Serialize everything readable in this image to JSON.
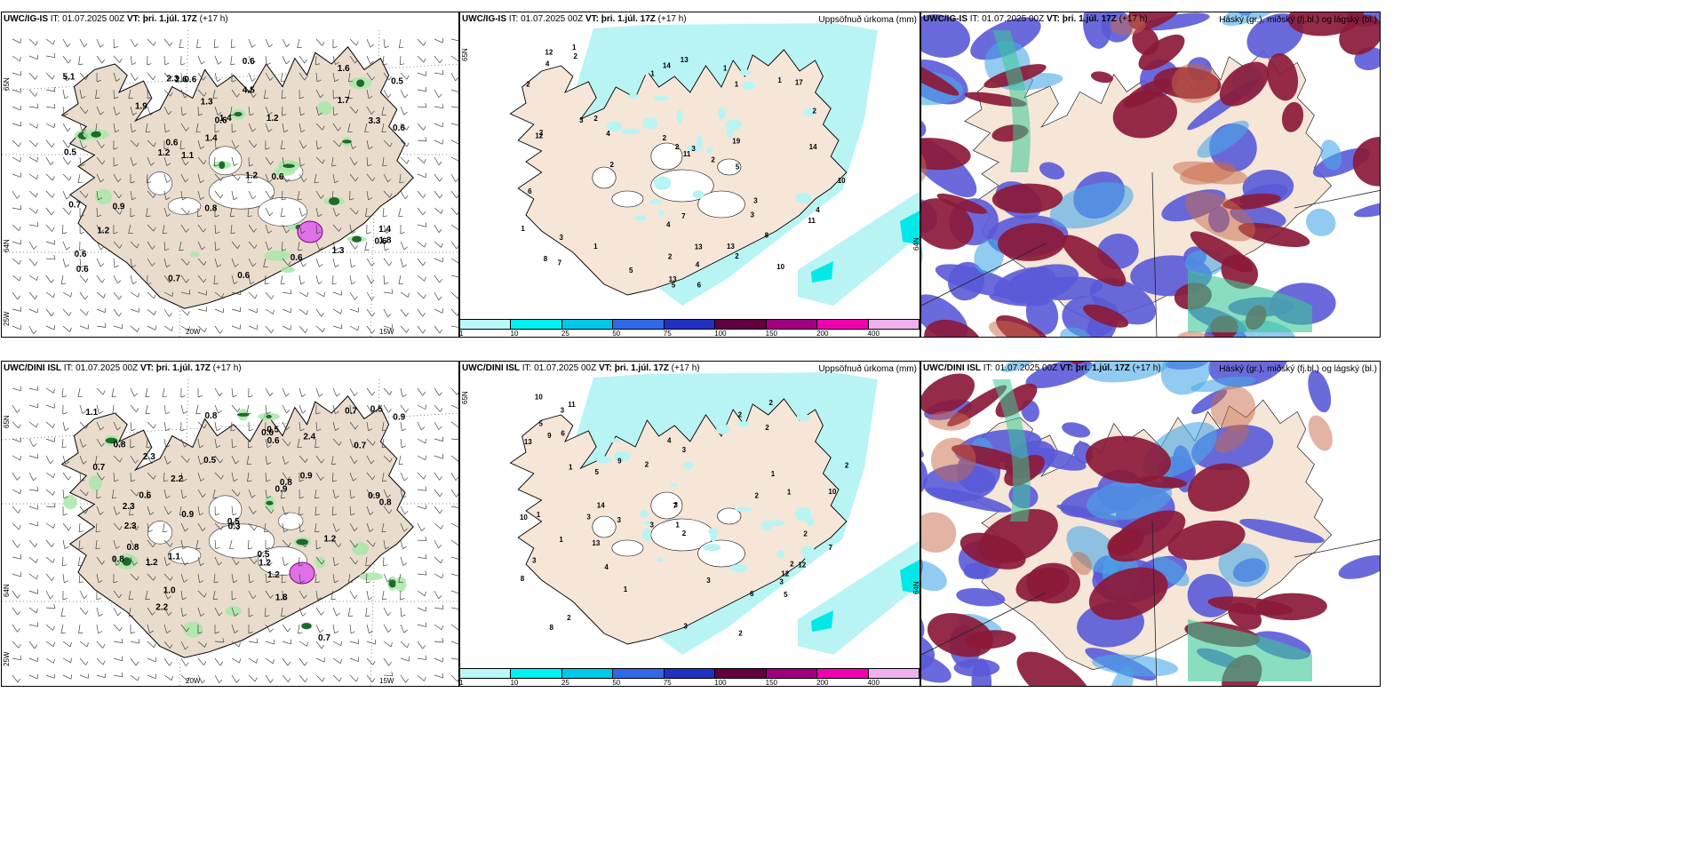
{
  "colors": {
    "land": "#f5e6d8",
    "land_dark": "#e9dccc",
    "precip_light": "#b8f4f4",
    "precip_mid": "#00e8e8",
    "cloud_high": "#8b1a3a",
    "cloud_mid": "#5a5ad8",
    "cloud_low": "#3cc896",
    "green_shade": "#a8e8a8",
    "magenta": "#e070e8"
  },
  "rows": [
    {
      "model": "UWC/IG-IS",
      "it_label": "IT:",
      "it_value": "01.07.2025 00Z",
      "vt_label": "VT:",
      "vt_value": "þri. 1.júl. 17Z",
      "lead": "(+17 h)",
      "precip_title": "Uppsöfnuð úrkoma (mm)",
      "cloud_title": "Háský (gr.), miðský (fj.bl.) og lágský (bl.)",
      "lon_labels": [
        "20W",
        "15W"
      ],
      "lat_labels": [
        "65N",
        "64N",
        "25W"
      ],
      "precip_lat_label": "65N",
      "precip_right_label": "64N",
      "wind_values": [
        "0.5",
        "0.6",
        "0.8",
        "1.2",
        "0.6",
        "1.1",
        "0.5",
        "0.6",
        "1.4",
        "0.6",
        "0.9",
        "0.6",
        "0.6",
        "0.6",
        "1.4",
        "0.6",
        "1.3",
        "0.6",
        "1.6",
        "1.2",
        "4.5",
        "0.6",
        "2.3",
        "1.3",
        "0.7",
        "1.9",
        "1.8",
        "1.2",
        "2.6",
        "1.4",
        "0.6",
        "5.1",
        "0.7",
        "3.3",
        "1.2",
        "1.7"
      ],
      "precip_values": [
        "2",
        "2",
        "3",
        "2",
        "2",
        "3",
        "2",
        "1",
        "2",
        "12",
        "13",
        "17",
        "13",
        "2",
        "2",
        "2",
        "1",
        "1",
        "1",
        "1",
        "2",
        "1",
        "4",
        "5",
        "3",
        "4",
        "8",
        "4",
        "3",
        "6",
        "2",
        "4",
        "3",
        "7",
        "5",
        "4",
        "13",
        "14",
        "7",
        "10",
        "6",
        "13",
        "14",
        "10",
        "19",
        "8",
        "11",
        "11",
        "12",
        "5",
        "1"
      ]
    },
    {
      "model": "UWC/DINI ISL",
      "it_label": "IT:",
      "it_value": "01.07.2025 00Z",
      "vt_label": "VT:",
      "vt_value": "þri. 1.júl. 17Z",
      "lead": "(+17 h)",
      "precip_title": "Uppsöfnuð úrkoma (mm)",
      "cloud_title": "Háský (gr.), miðský (fj.bl.) og lágský (bl.)",
      "lon_labels": [
        "20W",
        "15W"
      ],
      "lat_labels": [
        "65N",
        "64N",
        "25W"
      ],
      "precip_lat_label": "65N",
      "precip_right_label": "64N",
      "wind_values": [
        "1.2",
        "0.5",
        "0.7",
        "0.6",
        "0.9",
        "0.5",
        "0.8",
        "0.8",
        "0.7",
        "0.5",
        "0.8",
        "0.9",
        "0.6",
        "0.7",
        "0.7",
        "0.5",
        "0.9",
        "2.3",
        "0.3",
        "0.6",
        "0.5",
        "1.2",
        "1.0",
        "2.3",
        "1.2",
        "1.1",
        "0.9",
        "2.2",
        "0.9",
        "0.8",
        "1.2",
        "0.8",
        "2.3",
        "2.4",
        "1.8",
        "0.8",
        "1.1",
        "2.2"
      ],
      "precip_values": [
        "2",
        "2",
        "3",
        "2",
        "2",
        "2",
        "8",
        "2",
        "5",
        "3",
        "4",
        "12",
        "11",
        "3",
        "13",
        "3",
        "4",
        "5",
        "3",
        "1",
        "1",
        "2",
        "1",
        "1",
        "1",
        "3",
        "5",
        "3",
        "1",
        "6",
        "2",
        "3",
        "2",
        "1",
        "12",
        "7",
        "10",
        "9",
        "8",
        "10",
        "14",
        "9",
        "3",
        "7",
        "10",
        "6",
        "2",
        "13",
        "3",
        "2"
      ]
    }
  ],
  "legend": {
    "ticks": [
      "1",
      "10",
      "25",
      "50",
      "75",
      "100",
      "150",
      "200",
      "400"
    ],
    "colors": [
      "#b8f8f8",
      "#00f0f0",
      "#00c8e8",
      "#3068e8",
      "#2030c0",
      "#600040",
      "#a00080",
      "#f000b0",
      "#f0b0f0"
    ]
  }
}
